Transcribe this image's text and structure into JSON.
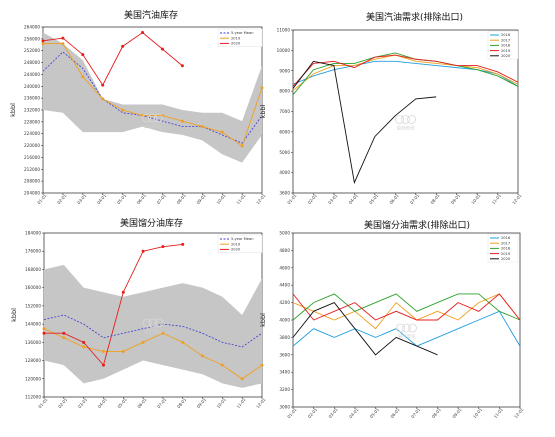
{
  "panels": [
    {
      "title": "美国汽油库存",
      "ylabel": "kbbl",
      "yticks": [
        "264000",
        "256000",
        "252000",
        "248000",
        "244000",
        "240000",
        "236000",
        "232000",
        "228000",
        "224000",
        "220000",
        "216000",
        "212000",
        "208000",
        "204000"
      ],
      "yrange": [
        204000,
        264000
      ],
      "xticks": [
        "01-01",
        "02-01",
        "03-01",
        "04-01",
        "05-01",
        "06-01",
        "07-01",
        "08-01",
        "09-01",
        "10-01",
        "11-01",
        "12-01"
      ],
      "legend": [
        "5-year Mean",
        "2019",
        "2020"
      ],
      "colors": [
        "#3a3ad6",
        "#f0a020",
        "#e51d1d"
      ],
      "chart_data": {
        "type": "line",
        "x": [
          "01-01",
          "02-01",
          "03-01",
          "04-01",
          "05-01",
          "06-01",
          "07-01",
          "08-01",
          "09-01",
          "10-01",
          "11-01",
          "12-01"
        ],
        "ylim": [
          204000,
          264000
        ],
        "band": {
          "name": "5-year range",
          "lower": [
            234000,
            233000,
            226000,
            226000,
            226000,
            228000,
            226000,
            225000,
            223000,
            218000,
            215000,
            225000
          ],
          "upper": [
            262000,
            258000,
            252000,
            238000,
            236000,
            236000,
            236000,
            234000,
            233000,
            233000,
            230000,
            250000
          ]
        },
        "series": [
          {
            "name": "5-year Mean",
            "values": [
              248000,
              255000,
              249000,
              238000,
              233000,
              232000,
              230000,
              228000,
              228000,
              225000,
              222000,
              232000
            ]
          },
          {
            "name": "2019",
            "values": [
              258000,
              258000,
              246000,
              238000,
              234000,
              232000,
              232000,
              230000,
              228000,
              226000,
              221000,
              242000
            ]
          },
          {
            "name": "2020",
            "values": [
              259000,
              260000,
              254000,
              243000,
              257000,
              262000,
              256000,
              250000,
              null,
              null,
              null,
              null
            ]
          }
        ]
      }
    },
    {
      "title": "美国汽油需求(排除出口)",
      "ylabel": "kbbl",
      "yticks": [
        "11000",
        "10000",
        "9000",
        "8000",
        "7000",
        "6000",
        "5000",
        "4000",
        "3600"
      ],
      "yrange": [
        3600,
        11400
      ],
      "xticks": [
        "01-01",
        "02-01",
        "03-01",
        "04-01",
        "05-01",
        "06-01",
        "07-01",
        "08-01",
        "09-01",
        "10-01",
        "11-01",
        "12-01"
      ],
      "legend": [
        "2016",
        "2017",
        "2018",
        "2019",
        "2020"
      ],
      "colors": [
        "#1f9fe0",
        "#f0a020",
        "#2ca02c",
        "#e51d1d",
        "#111111"
      ],
      "chart_data": {
        "type": "line",
        "x": [
          "01-01",
          "02-01",
          "03-01",
          "04-01",
          "05-01",
          "06-01",
          "07-01",
          "08-01",
          "09-01",
          "10-01",
          "11-01",
          "12-01"
        ],
        "ylim": [
          3600,
          11400
        ],
        "series": [
          {
            "name": "2016",
            "values": [
              8800,
              9200,
              9500,
              9700,
              9900,
              9900,
              9800,
              9700,
              9600,
              9500,
              9300,
              8700
            ]
          },
          {
            "name": "2017",
            "values": [
              8500,
              9300,
              9700,
              9700,
              10000,
              10200,
              9900,
              9800,
              9700,
              9600,
              9300,
              8800
            ]
          },
          {
            "name": "2018",
            "values": [
              8300,
              9500,
              9800,
              9800,
              10100,
              10300,
              10000,
              9900,
              9700,
              9500,
              9200,
              8700
            ]
          },
          {
            "name": "2019",
            "values": [
              8700,
              9800,
              9900,
              9600,
              10100,
              10200,
              10000,
              9900,
              9700,
              9700,
              9400,
              8900
            ]
          },
          {
            "name": "2020",
            "values": [
              8600,
              9900,
              9700,
              4100,
              6300,
              7300,
              8100,
              8200,
              null,
              null,
              null,
              null
            ]
          }
        ]
      }
    },
    {
      "title": "美国馏分油库存",
      "ylabel": "kbbl",
      "yticks": [
        "184000",
        "176000",
        "168000",
        "160000",
        "152000",
        "144000",
        "136000",
        "128000",
        "120000",
        "112000"
      ],
      "yrange": [
        112000,
        184000
      ],
      "xticks": [
        "01-01",
        "02-01",
        "03-01",
        "04-01",
        "05-01",
        "06-01",
        "07-01",
        "08-01",
        "09-01",
        "10-01",
        "11-01",
        "12-01"
      ],
      "legend": [
        "5-year Mean",
        "2019",
        "2020"
      ],
      "colors": [
        "#3a3ad6",
        "#f0a020",
        "#e51d1d"
      ],
      "chart_data": {
        "type": "line",
        "x": [
          "01-01",
          "02-01",
          "03-01",
          "04-01",
          "05-01",
          "06-01",
          "07-01",
          "08-01",
          "09-01",
          "10-01",
          "11-01",
          "12-01"
        ],
        "ylim": [
          112000,
          184000
        ],
        "band": {
          "name": "5-year range",
          "lower": [
            128000,
            126000,
            118000,
            120000,
            124000,
            128000,
            126000,
            124000,
            122000,
            118000,
            116000,
            118000
          ],
          "upper": [
            168000,
            170000,
            160000,
            158000,
            156000,
            158000,
            160000,
            162000,
            160000,
            156000,
            148000,
            164000
          ]
        },
        "series": [
          {
            "name": "5-year Mean",
            "values": [
              146000,
              148000,
              144000,
              138000,
              140000,
              142000,
              144000,
              143000,
              140000,
              136000,
              134000,
              140000
            ]
          },
          {
            "name": "2019",
            "values": [
              142000,
              138000,
              134000,
              132000,
              132000,
              136000,
              140000,
              136000,
              130000,
              126000,
              120000,
              126000
            ]
          },
          {
            "name": "2020",
            "values": [
              140000,
              140000,
              136000,
              126000,
              158000,
              176000,
              178000,
              179000,
              null,
              null,
              null,
              null
            ]
          }
        ]
      }
    },
    {
      "title": "美国馏分油需求(排除出口)",
      "ylabel": "kbbl",
      "yticks": [
        "5000",
        "4800",
        "4600",
        "4400",
        "4200",
        "4000",
        "3800",
        "3600",
        "3400",
        "3200",
        "3000"
      ],
      "yrange": [
        3000,
        5000
      ],
      "xticks": [
        "01-01",
        "02-01",
        "03-01",
        "04-01",
        "05-01",
        "06-01",
        "07-01",
        "08-01",
        "09-01",
        "10-01",
        "11-01",
        "12-01"
      ],
      "legend": [
        "2016",
        "2017",
        "2018",
        "2019",
        "2020"
      ],
      "colors": [
        "#1f9fe0",
        "#f0a020",
        "#2ca02c",
        "#e51d1d",
        "#111111"
      ],
      "chart_data": {
        "type": "line",
        "x": [
          "01-01",
          "02-01",
          "03-01",
          "04-01",
          "05-01",
          "06-01",
          "07-01",
          "08-01",
          "09-01",
          "10-01",
          "11-01",
          "12-01"
        ],
        "ylim": [
          3000,
          5000
        ],
        "series": [
          {
            "name": "2016",
            "values": [
              3700,
              3900,
              3800,
              3900,
              3800,
              3900,
              3700,
              3800,
              3900,
              4000,
              4100,
              3700
            ]
          },
          {
            "name": "2017",
            "values": [
              4200,
              4100,
              4000,
              4100,
              3900,
              4200,
              4000,
              4100,
              4000,
              4200,
              4300,
              4000
            ]
          },
          {
            "name": "2018",
            "values": [
              4000,
              4200,
              4300,
              4100,
              4200,
              4300,
              4100,
              4200,
              4300,
              4300,
              4100,
              4000
            ]
          },
          {
            "name": "2019",
            "values": [
              4300,
              4000,
              4100,
              4200,
              4000,
              4100,
              4000,
              4000,
              4200,
              4100,
              4300,
              4000
            ]
          },
          {
            "name": "2020",
            "values": [
              3800,
              4100,
              4200,
              3900,
              3600,
              3800,
              3700,
              3600,
              null,
              null,
              null,
              null
            ]
          }
        ]
      }
    }
  ],
  "watermark": "卓创资讯"
}
